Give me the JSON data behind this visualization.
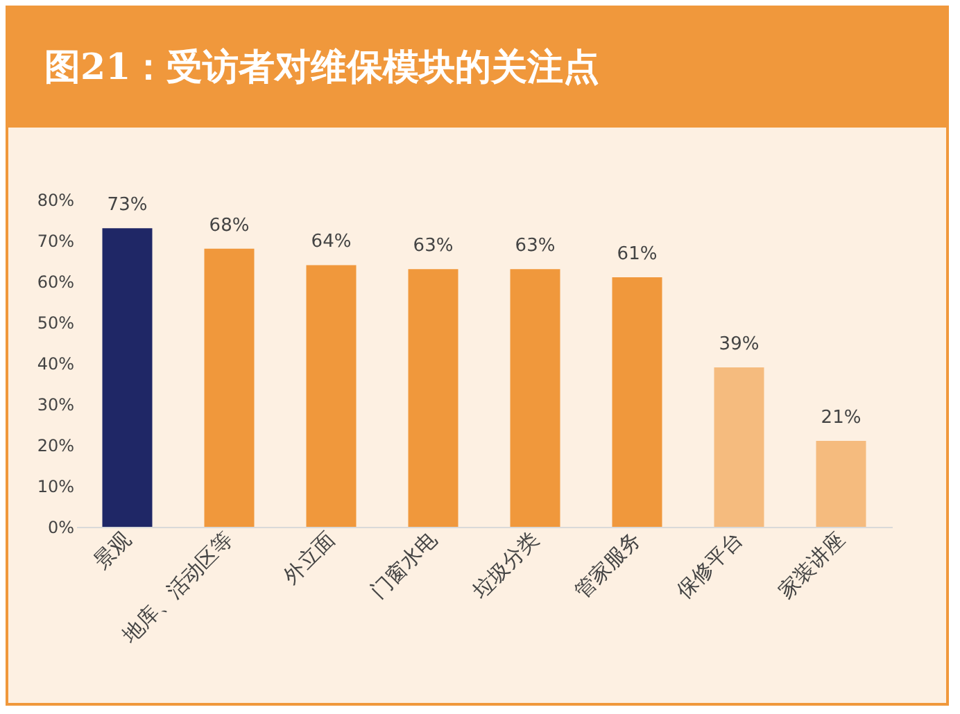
{
  "chart_data": {
    "type": "bar",
    "title": "图21：受访者对维保模块的关注点",
    "categories": [
      "景观",
      "地库、活动区等",
      "外立面",
      "门窗水电",
      "垃圾分类",
      "管家服务",
      "保修平台",
      "家装讲座"
    ],
    "values": [
      73,
      68,
      64,
      63,
      63,
      61,
      39,
      21
    ],
    "colors": [
      "#1f2766",
      "#f0983c",
      "#f0983c",
      "#f0983c",
      "#f0983c",
      "#f0983c",
      "#f5bb7e",
      "#f5bb7e"
    ],
    "value_labels": [
      "73%",
      "68%",
      "64%",
      "63%",
      "63%",
      "61%",
      "39%",
      "21%"
    ],
    "ylim": [
      0,
      80
    ],
    "yticks": [
      {
        "value": 0,
        "label": "0%"
      },
      {
        "value": 10,
        "label": "10%"
      },
      {
        "value": 20,
        "label": "20%"
      },
      {
        "value": 30,
        "label": "30%"
      },
      {
        "value": 40,
        "label": "40%"
      },
      {
        "value": 50,
        "label": "50%"
      },
      {
        "value": 60,
        "label": "60%"
      },
      {
        "value": 70,
        "label": "70%"
      },
      {
        "value": 80,
        "label": "80%"
      }
    ],
    "grid": false
  }
}
